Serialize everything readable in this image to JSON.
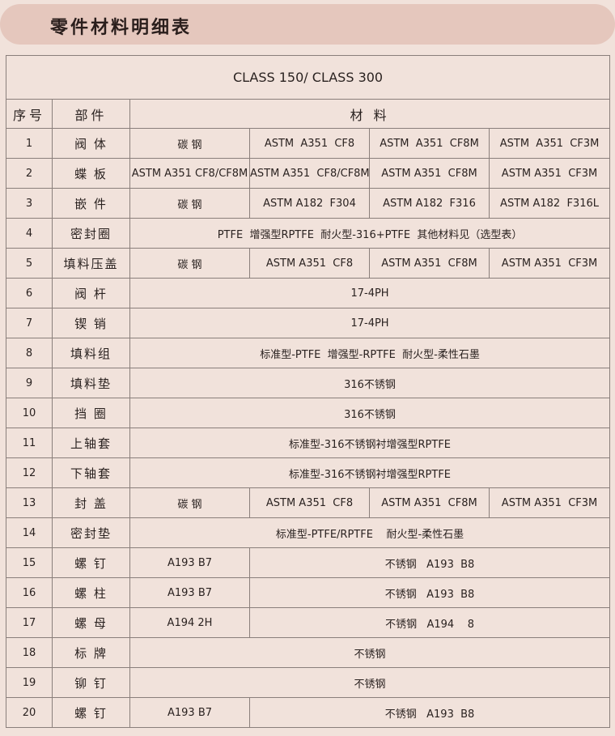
{
  "title": "零件材料明细表",
  "class_label": "CLASS 150/ CLASS 300",
  "headers": {
    "no": "序号",
    "part": "部件",
    "material": "材 料"
  },
  "colors": {
    "background": "#f1e2db",
    "banner": "#e5c7bd",
    "border": "#8a7f7b"
  },
  "rows": [
    {
      "no": "1",
      "part": "阀 体",
      "cells": [
        {
          "text": "碳 钢",
          "span": 1
        },
        {
          "text": "ASTM  A351  CF8",
          "span": 1
        },
        {
          "text": "ASTM  A351  CF8M",
          "span": 1
        },
        {
          "text": "ASTM  A351  CF3M",
          "span": 1
        }
      ]
    },
    {
      "no": "2",
      "part": "蝶 板",
      "cells": [
        {
          "text": "ASTM A351 CF8/CF8M",
          "span": 1
        },
        {
          "text": "ASTM A351  CF8/CF8M",
          "span": 1
        },
        {
          "text": "ASTM A351  CF8M",
          "span": 1
        },
        {
          "text": "ASTM A351  CF3M",
          "span": 1
        }
      ]
    },
    {
      "no": "3",
      "part": "嵌 件",
      "cells": [
        {
          "text": "碳 钢",
          "span": 1
        },
        {
          "text": "ASTM A182  F304",
          "span": 1
        },
        {
          "text": "ASTM A182  F316",
          "span": 1
        },
        {
          "text": "ASTM A182  F316L",
          "span": 1
        }
      ]
    },
    {
      "no": "4",
      "part": "密封圈",
      "cells": [
        {
          "text": "PTFE  增强型RPTFE  耐火型-316+PTFE  其他材料见（选型表）",
          "span": 4
        }
      ]
    },
    {
      "no": "5",
      "part": "填料压盖",
      "cells": [
        {
          "text": "碳 钢",
          "span": 1
        },
        {
          "text": "ASTM A351  CF8",
          "span": 1
        },
        {
          "text": "ASTM A351  CF8M",
          "span": 1
        },
        {
          "text": "ASTM A351  CF3M",
          "span": 1
        }
      ]
    },
    {
      "no": "6",
      "part": "阀 杆",
      "cells": [
        {
          "text": "17-4PH",
          "span": 4
        }
      ]
    },
    {
      "no": "7",
      "part": "锲 销",
      "cells": [
        {
          "text": "17-4PH",
          "span": 4
        }
      ]
    },
    {
      "no": "8",
      "part": "填料组",
      "cells": [
        {
          "text": "标准型-PTFE  增强型-RPTFE  耐火型-柔性石墨",
          "span": 4
        }
      ]
    },
    {
      "no": "9",
      "part": "填料垫",
      "cells": [
        {
          "text": "316不锈钢",
          "span": 4
        }
      ]
    },
    {
      "no": "10",
      "part": "挡 圈",
      "cells": [
        {
          "text": "316不锈钢",
          "span": 4
        }
      ]
    },
    {
      "no": "11",
      "part": "上轴套",
      "cells": [
        {
          "text": "标准型-316不锈钢衬增强型RPTFE",
          "span": 4
        }
      ]
    },
    {
      "no": "12",
      "part": "下轴套",
      "cells": [
        {
          "text": "标准型-316不锈钢衬增强型RPTFE",
          "span": 4
        }
      ]
    },
    {
      "no": "13",
      "part": "封 盖",
      "cells": [
        {
          "text": "碳 钢",
          "span": 1
        },
        {
          "text": "ASTM A351  CF8",
          "span": 1
        },
        {
          "text": "ASTM A351  CF8M",
          "span": 1
        },
        {
          "text": "ASTM A351  CF3M",
          "span": 1
        }
      ]
    },
    {
      "no": "14",
      "part": "密封垫",
      "cells": [
        {
          "text": "标准型-PTFE/RPTFE    耐火型-柔性石墨",
          "span": 4
        }
      ]
    },
    {
      "no": "15",
      "part": "螺 钉",
      "cells": [
        {
          "text": "A193 B7",
          "span": 1
        },
        {
          "text": "不锈钢   A193  B8",
          "span": 3
        }
      ]
    },
    {
      "no": "16",
      "part": "螺 柱",
      "cells": [
        {
          "text": "A193 B7",
          "span": 1
        },
        {
          "text": "不锈钢   A193  B8",
          "span": 3
        }
      ]
    },
    {
      "no": "17",
      "part": "螺 母",
      "cells": [
        {
          "text": "A194 2H",
          "span": 1
        },
        {
          "text": "不锈钢   A194    8",
          "span": 3
        }
      ]
    },
    {
      "no": "18",
      "part": "标 牌",
      "cells": [
        {
          "text": "不锈钢",
          "span": 4
        }
      ]
    },
    {
      "no": "19",
      "part": "铆 钉",
      "cells": [
        {
          "text": "不锈钢",
          "span": 4
        }
      ]
    },
    {
      "no": "20",
      "part": "螺 钉",
      "cells": [
        {
          "text": "A193 B7",
          "span": 1
        },
        {
          "text": "不锈钢   A193  B8",
          "span": 3
        }
      ]
    }
  ]
}
